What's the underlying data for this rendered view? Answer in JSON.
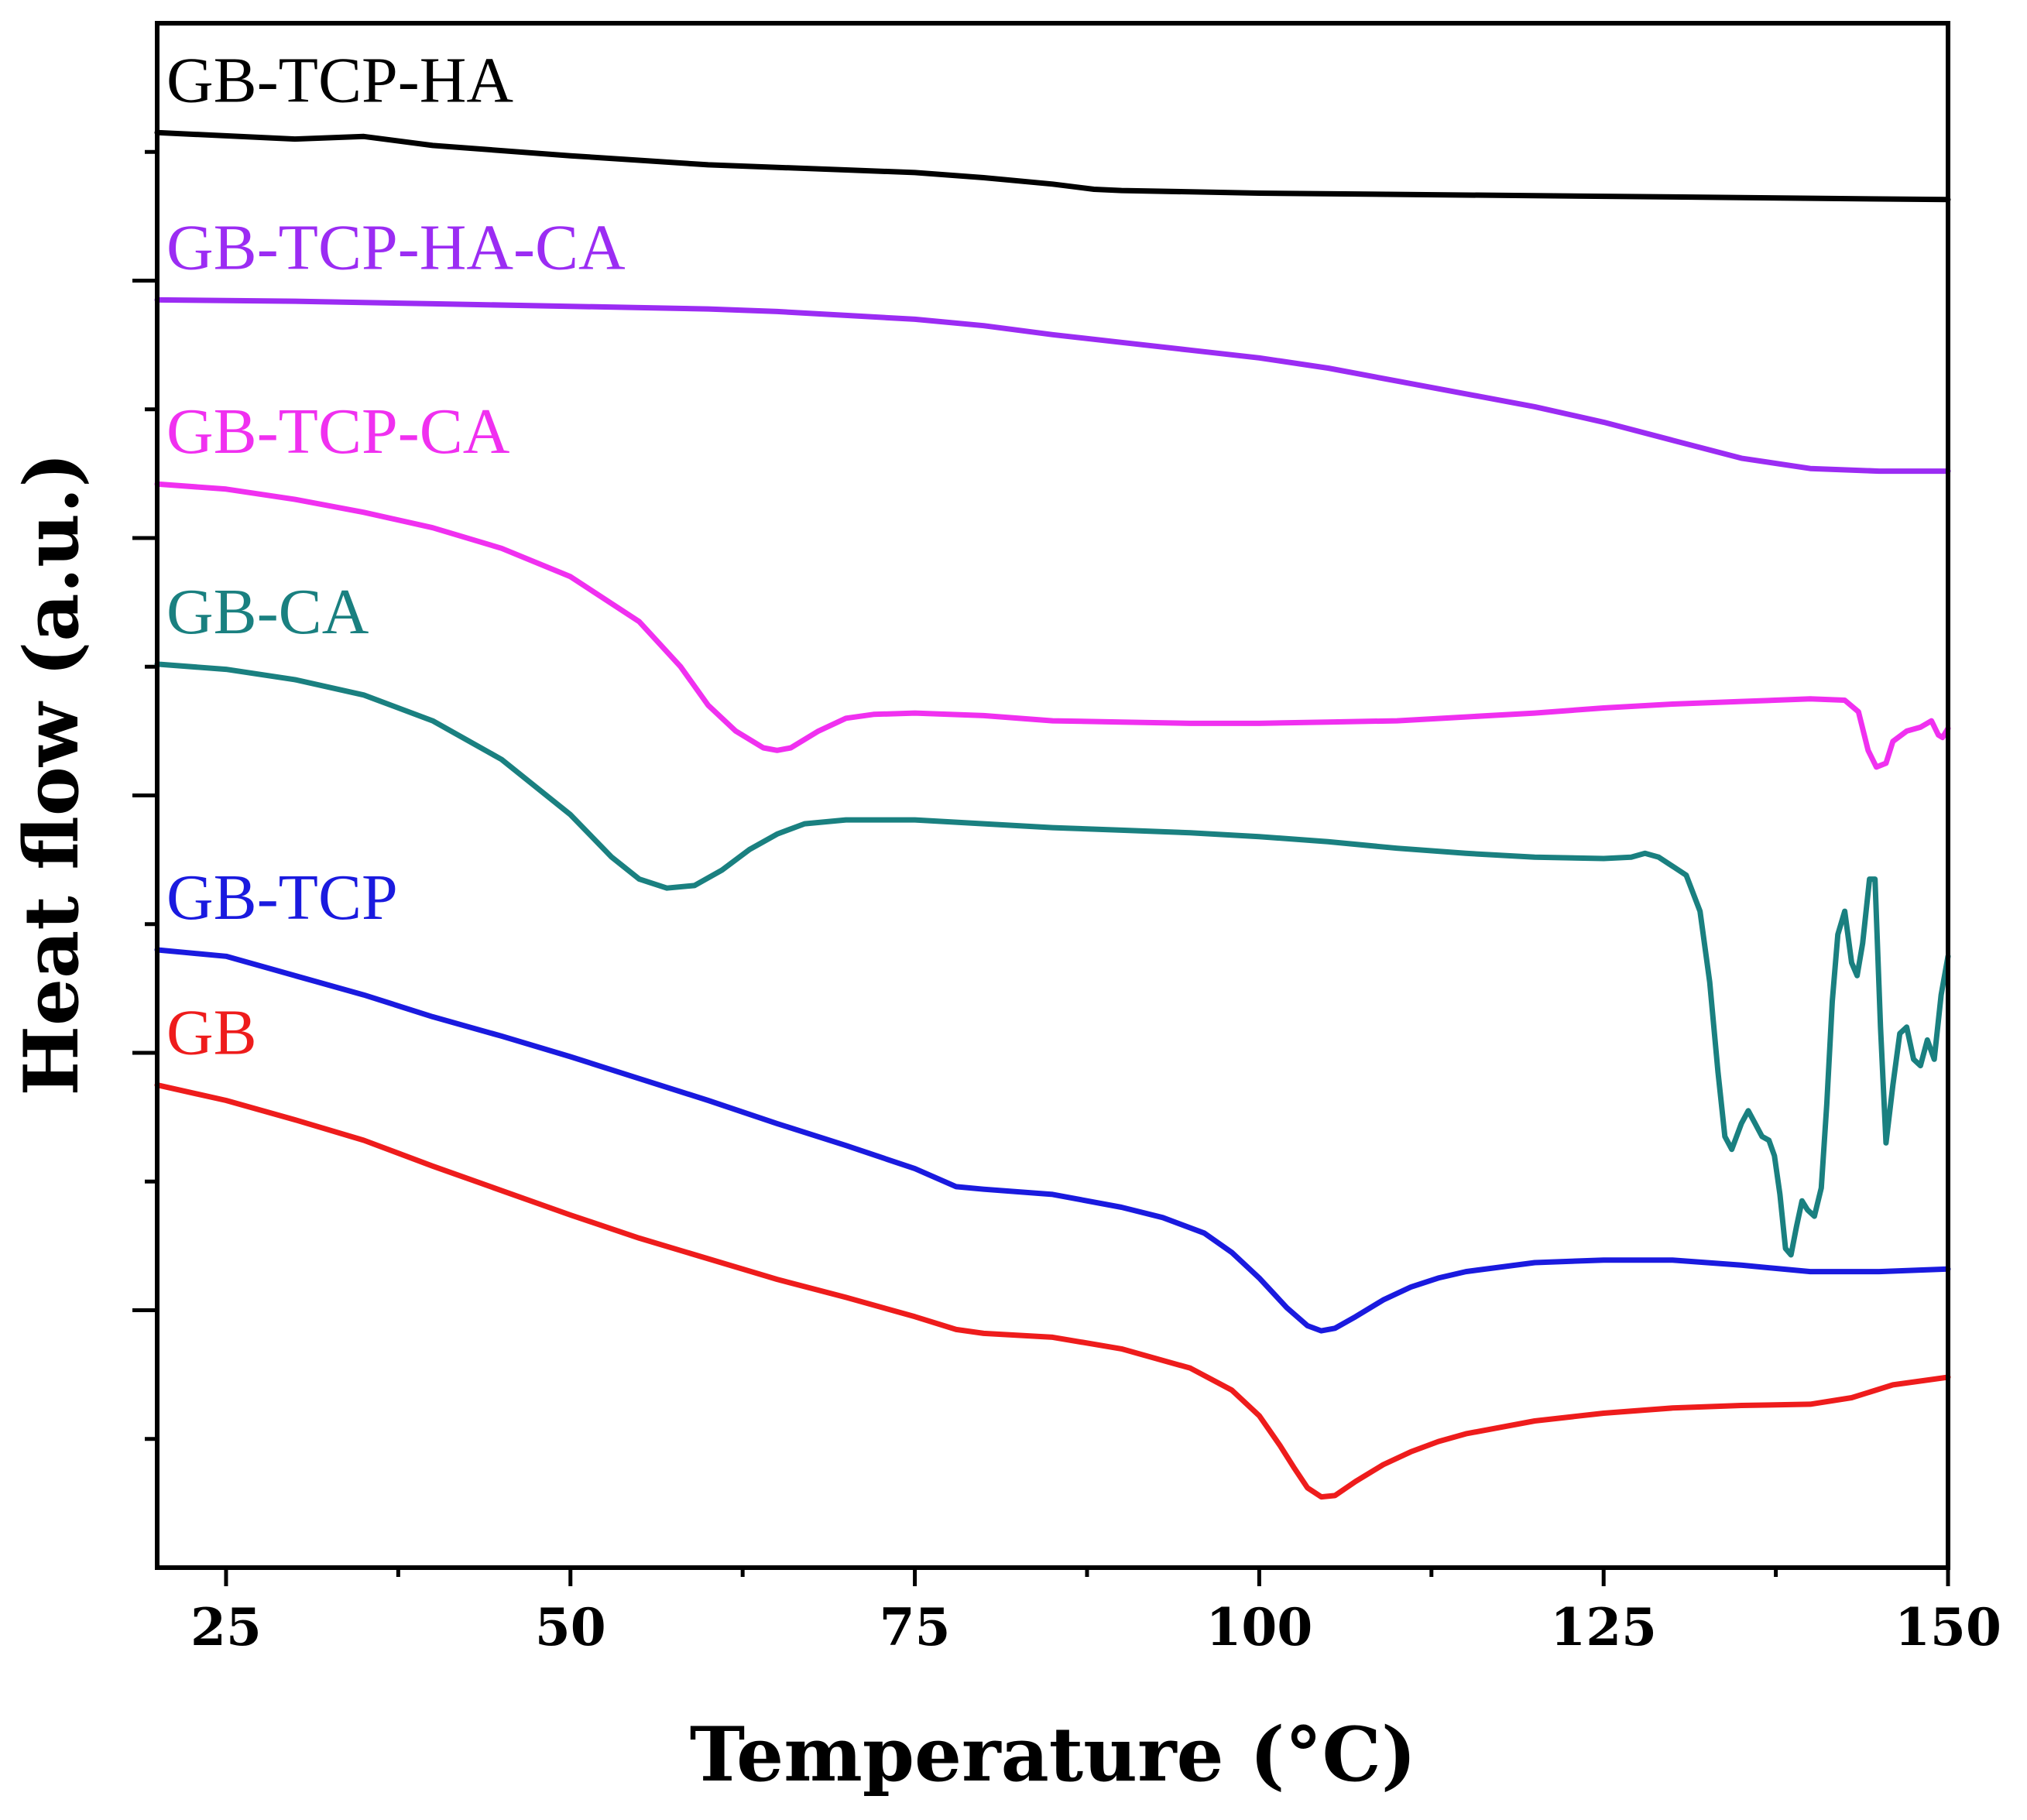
{
  "chart_data": {
    "type": "line",
    "title": "",
    "xlabel": "Temperature (°C)",
    "ylabel": "Heat flow (a.u.)",
    "xlim": [
      20,
      150
    ],
    "ylim": [
      0,
      12
    ],
    "xticks": [
      25,
      50,
      75,
      100,
      125,
      150
    ],
    "xtick_labels": [
      "25",
      "50",
      "75",
      "100",
      "125",
      "150"
    ],
    "yticks_unlabeled": true,
    "grid": false,
    "legend": "inline labels above each curve",
    "series": [
      {
        "name": "GB-TCP-HA",
        "color": "#000000",
        "points": [
          [
            20,
            11.15
          ],
          [
            30,
            11.1
          ],
          [
            35,
            11.12
          ],
          [
            40,
            11.05
          ],
          [
            50,
            10.97
          ],
          [
            60,
            10.9
          ],
          [
            70,
            10.86
          ],
          [
            75,
            10.84
          ],
          [
            80,
            10.8
          ],
          [
            85,
            10.75
          ],
          [
            88,
            10.71
          ],
          [
            90,
            10.7
          ],
          [
            95,
            10.69
          ],
          [
            100,
            10.68
          ],
          [
            110,
            10.67
          ],
          [
            120,
            10.66
          ],
          [
            130,
            10.65
          ],
          [
            140,
            10.64
          ],
          [
            150,
            10.63
          ]
        ]
      },
      {
        "name": "GB-TCP-HA-CA",
        "color": "#9b2cf3",
        "points": [
          [
            20,
            9.85
          ],
          [
            30,
            9.84
          ],
          [
            40,
            9.82
          ],
          [
            50,
            9.8
          ],
          [
            60,
            9.78
          ],
          [
            65,
            9.76
          ],
          [
            70,
            9.73
          ],
          [
            75,
            9.7
          ],
          [
            80,
            9.65
          ],
          [
            85,
            9.58
          ],
          [
            90,
            9.52
          ],
          [
            95,
            9.46
          ],
          [
            100,
            9.4
          ],
          [
            105,
            9.32
          ],
          [
            110,
            9.22
          ],
          [
            115,
            9.12
          ],
          [
            120,
            9.02
          ],
          [
            125,
            8.9
          ],
          [
            130,
            8.76
          ],
          [
            135,
            8.62
          ],
          [
            140,
            8.54
          ],
          [
            145,
            8.52
          ],
          [
            150,
            8.52
          ]
        ]
      },
      {
        "name": "GB-TCP-CA",
        "color": "#f030f0",
        "points": [
          [
            20,
            8.42
          ],
          [
            25,
            8.38
          ],
          [
            30,
            8.3
          ],
          [
            35,
            8.2
          ],
          [
            40,
            8.08
          ],
          [
            45,
            7.92
          ],
          [
            50,
            7.7
          ],
          [
            55,
            7.35
          ],
          [
            58,
            7.0
          ],
          [
            60,
            6.7
          ],
          [
            62,
            6.5
          ],
          [
            64,
            6.37
          ],
          [
            65,
            6.35
          ],
          [
            66,
            6.37
          ],
          [
            68,
            6.5
          ],
          [
            70,
            6.6
          ],
          [
            72,
            6.63
          ],
          [
            75,
            6.64
          ],
          [
            80,
            6.62
          ],
          [
            85,
            6.58
          ],
          [
            90,
            6.57
          ],
          [
            95,
            6.56
          ],
          [
            100,
            6.56
          ],
          [
            105,
            6.57
          ],
          [
            110,
            6.58
          ],
          [
            115,
            6.61
          ],
          [
            120,
            6.64
          ],
          [
            125,
            6.68
          ],
          [
            130,
            6.71
          ],
          [
            135,
            6.73
          ],
          [
            140,
            6.75
          ],
          [
            142.5,
            6.74
          ],
          [
            143.5,
            6.65
          ],
          [
            144.2,
            6.35
          ],
          [
            144.8,
            6.22
          ],
          [
            145.5,
            6.25
          ],
          [
            146,
            6.42
          ],
          [
            147,
            6.5
          ],
          [
            148,
            6.53
          ],
          [
            148.8,
            6.58
          ],
          [
            149.3,
            6.47
          ],
          [
            149.6,
            6.45
          ],
          [
            150,
            6.52
          ]
        ]
      },
      {
        "name": "GB-CA",
        "color": "#1a8080",
        "points": [
          [
            20,
            7.02
          ],
          [
            25,
            6.98
          ],
          [
            30,
            6.9
          ],
          [
            35,
            6.78
          ],
          [
            40,
            6.58
          ],
          [
            45,
            6.28
          ],
          [
            50,
            5.85
          ],
          [
            53,
            5.52
          ],
          [
            55,
            5.35
          ],
          [
            57,
            5.28
          ],
          [
            59,
            5.3
          ],
          [
            61,
            5.42
          ],
          [
            63,
            5.58
          ],
          [
            65,
            5.7
          ],
          [
            67,
            5.78
          ],
          [
            70,
            5.81
          ],
          [
            75,
            5.81
          ],
          [
            80,
            5.78
          ],
          [
            85,
            5.75
          ],
          [
            90,
            5.73
          ],
          [
            95,
            5.71
          ],
          [
            100,
            5.68
          ],
          [
            105,
            5.64
          ],
          [
            110,
            5.59
          ],
          [
            115,
            5.55
          ],
          [
            120,
            5.52
          ],
          [
            125,
            5.51
          ],
          [
            127,
            5.52
          ],
          [
            128,
            5.55
          ],
          [
            129,
            5.52
          ],
          [
            130,
            5.45
          ],
          [
            131,
            5.38
          ],
          [
            132,
            5.1
          ],
          [
            132.7,
            4.55
          ],
          [
            133.3,
            3.85
          ],
          [
            133.8,
            3.35
          ],
          [
            134.3,
            3.25
          ],
          [
            135,
            3.45
          ],
          [
            135.5,
            3.55
          ],
          [
            136,
            3.45
          ],
          [
            136.5,
            3.35
          ],
          [
            137,
            3.32
          ],
          [
            137.4,
            3.2
          ],
          [
            137.8,
            2.9
          ],
          [
            138.2,
            2.48
          ],
          [
            138.6,
            2.43
          ],
          [
            139,
            2.65
          ],
          [
            139.4,
            2.85
          ],
          [
            139.8,
            2.78
          ],
          [
            140.3,
            2.73
          ],
          [
            140.8,
            2.95
          ],
          [
            141.2,
            3.6
          ],
          [
            141.6,
            4.4
          ],
          [
            142,
            4.92
          ],
          [
            142.5,
            5.1
          ],
          [
            143,
            4.7
          ],
          [
            143.4,
            4.6
          ],
          [
            143.8,
            4.85
          ],
          [
            144.3,
            5.35
          ],
          [
            144.7,
            5.35
          ],
          [
            145.1,
            4.2
          ],
          [
            145.5,
            3.3
          ],
          [
            146,
            3.75
          ],
          [
            146.5,
            4.15
          ],
          [
            147,
            4.2
          ],
          [
            147.5,
            3.95
          ],
          [
            148,
            3.9
          ],
          [
            148.5,
            4.1
          ],
          [
            149,
            3.95
          ],
          [
            149.5,
            4.45
          ],
          [
            150,
            4.75
          ]
        ]
      },
      {
        "name": "GB-TCP",
        "color": "#1a1adf",
        "points": [
          [
            20,
            4.8
          ],
          [
            22,
            4.78
          ],
          [
            25,
            4.75
          ],
          [
            30,
            4.6
          ],
          [
            35,
            4.45
          ],
          [
            40,
            4.28
          ],
          [
            45,
            4.13
          ],
          [
            50,
            3.97
          ],
          [
            55,
            3.8
          ],
          [
            60,
            3.63
          ],
          [
            65,
            3.45
          ],
          [
            70,
            3.28
          ],
          [
            75,
            3.1
          ],
          [
            78,
            2.96
          ],
          [
            80,
            2.94
          ],
          [
            85,
            2.9
          ],
          [
            90,
            2.8
          ],
          [
            93,
            2.72
          ],
          [
            96,
            2.6
          ],
          [
            98,
            2.45
          ],
          [
            100,
            2.25
          ],
          [
            102,
            2.02
          ],
          [
            103.5,
            1.88
          ],
          [
            104.5,
            1.84
          ],
          [
            105.5,
            1.86
          ],
          [
            107,
            1.95
          ],
          [
            109,
            2.08
          ],
          [
            111,
            2.18
          ],
          [
            113,
            2.25
          ],
          [
            115,
            2.3
          ],
          [
            120,
            2.37
          ],
          [
            125,
            2.39
          ],
          [
            130,
            2.39
          ],
          [
            135,
            2.35
          ],
          [
            140,
            2.3
          ],
          [
            145,
            2.3
          ],
          [
            150,
            2.32
          ]
        ]
      },
      {
        "name": "GB",
        "color": "#ee1c1c",
        "points": [
          [
            20,
            3.75
          ],
          [
            25,
            3.63
          ],
          [
            30,
            3.48
          ],
          [
            35,
            3.32
          ],
          [
            40,
            3.12
          ],
          [
            45,
            2.93
          ],
          [
            50,
            2.74
          ],
          [
            55,
            2.56
          ],
          [
            60,
            2.4
          ],
          [
            65,
            2.24
          ],
          [
            70,
            2.1
          ],
          [
            75,
            1.95
          ],
          [
            78,
            1.85
          ],
          [
            80,
            1.82
          ],
          [
            85,
            1.79
          ],
          [
            90,
            1.7
          ],
          [
            95,
            1.55
          ],
          [
            98,
            1.38
          ],
          [
            100,
            1.18
          ],
          [
            101.5,
            0.95
          ],
          [
            102.5,
            0.78
          ],
          [
            103.5,
            0.62
          ],
          [
            104.5,
            0.55
          ],
          [
            105.5,
            0.56
          ],
          [
            107,
            0.67
          ],
          [
            109,
            0.8
          ],
          [
            111,
            0.9
          ],
          [
            113,
            0.98
          ],
          [
            115,
            1.04
          ],
          [
            120,
            1.14
          ],
          [
            125,
            1.2
          ],
          [
            130,
            1.24
          ],
          [
            135,
            1.26
          ],
          [
            140,
            1.27
          ],
          [
            143,
            1.32
          ],
          [
            146,
            1.42
          ],
          [
            150,
            1.48
          ]
        ]
      }
    ]
  }
}
